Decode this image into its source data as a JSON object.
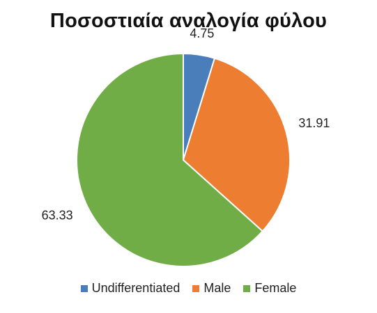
{
  "chart_data": {
    "type": "pie",
    "title": "Ποσοστιαία αναλογία φύλου",
    "categories": [
      "Undifferentiated",
      "Male",
      "Female"
    ],
    "values": [
      4.75,
      31.91,
      63.33
    ],
    "labels": [
      "4.75",
      "31.91",
      "63.33"
    ],
    "colors": [
      "#4a7ebb",
      "#ed7d31",
      "#70ad47"
    ],
    "legend_position": "bottom",
    "start_angle": "12 o'clock, clockwise"
  }
}
